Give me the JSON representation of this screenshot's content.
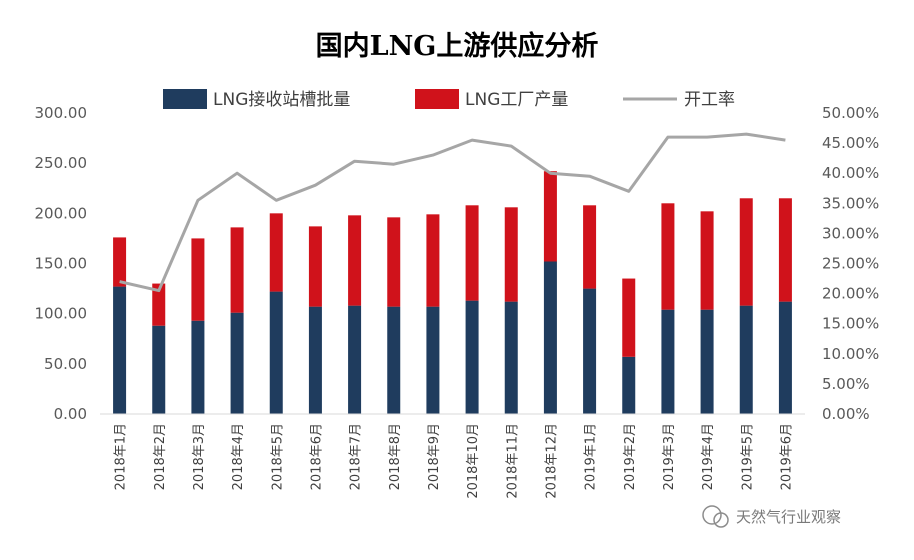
{
  "chart_data": {
    "type": "bar+line",
    "title": "国内LNG上游供应分析",
    "categories": [
      "2018年1月",
      "2018年2月",
      "2018年3月",
      "2018年4月",
      "2018年5月",
      "2018年6月",
      "2018年7月",
      "2018年8月",
      "2018年9月",
      "2018年10月",
      "2018年11月",
      "2018年12月",
      "2019年1月",
      "2019年2月",
      "2019年3月",
      "2019年4月",
      "2019年5月",
      "2019年6月"
    ],
    "series": [
      {
        "name": "LNG接收站槽批量",
        "type": "bar",
        "axis": "left",
        "stack": "supply",
        "color": "#1f3c5e",
        "values": [
          127,
          88,
          93,
          101,
          122,
          107,
          108,
          107,
          107,
          113,
          112,
          152,
          125,
          57,
          104,
          104,
          108,
          112
        ]
      },
      {
        "name": "LNG工厂产量",
        "type": "bar",
        "axis": "left",
        "stack": "supply",
        "color": "#d0121b",
        "values": [
          49,
          42,
          82,
          85,
          78,
          80,
          90,
          89,
          92,
          95,
          94,
          90,
          83,
          78,
          106,
          98,
          107,
          103
        ]
      },
      {
        "name": "开工率",
        "type": "line",
        "axis": "right",
        "color": "#a6a6a6",
        "values": [
          22.0,
          20.5,
          35.5,
          40.0,
          35.5,
          38.0,
          42.0,
          41.5,
          43.0,
          45.5,
          44.5,
          40.0,
          39.5,
          37.0,
          46.0,
          46.0,
          46.5,
          45.5
        ]
      }
    ],
    "y_left": {
      "min": 0,
      "max": 300,
      "step": 50,
      "tick_labels": [
        "0.00",
        "50.00",
        "100.00",
        "150.00",
        "200.00",
        "250.00",
        "300.00"
      ]
    },
    "y_right": {
      "min": 0,
      "max": 50,
      "step": 5,
      "unit": "%",
      "tick_labels": [
        "0.00%",
        "5.00%",
        "10.00%",
        "15.00%",
        "20.00%",
        "25.00%",
        "30.00%",
        "35.00%",
        "40.00%",
        "45.00%",
        "50.00%"
      ]
    },
    "legend_position": "top",
    "grid": false
  },
  "watermark": "天然气行业观察",
  "colors": {
    "axis": "#d9d9d9",
    "text": "#404040",
    "tick_text": "#595959"
  }
}
